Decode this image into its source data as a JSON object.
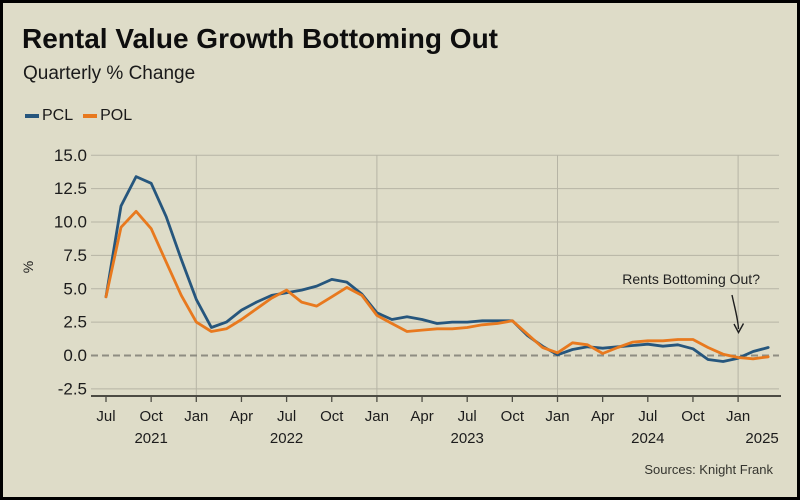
{
  "header": {
    "title": "Rental Value Growth Bottoming Out",
    "subtitle": "Quarterly % Change"
  },
  "legend": {
    "items": [
      {
        "label": "PCL",
        "color": "#26567d"
      },
      {
        "label": "POL",
        "color": "#e8791e"
      }
    ]
  },
  "footer": {
    "sources": "Sources: Knight Frank"
  },
  "colors": {
    "background": "#dedcc8",
    "pcl_line": "#26567d",
    "pol_line": "#e8791e",
    "gridline": "#b6b4a5",
    "zero_line": "#8e8d82",
    "axis": "#4c4b43",
    "text": "#1c1c1c",
    "annotation": "#1f1f1f"
  },
  "chart_data": {
    "type": "line",
    "title": "Rental Value Growth Bottoming Out",
    "subtitle": "Quarterly % Change",
    "ylabel": "%",
    "ylim": [
      -2.5,
      15.0
    ],
    "yticks": [
      15.0,
      12.5,
      10.0,
      7.5,
      5.0,
      2.5,
      0.0,
      -2.5
    ],
    "grid": "horizontal-light, vertical-at-january, dashed-zero-line",
    "legend_position": "top-left",
    "months": [
      "Jul 2021",
      "Aug 2021",
      "Sep 2021",
      "Oct 2021",
      "Nov 2021",
      "Dec 2021",
      "Jan 2022",
      "Feb 2022",
      "Mar 2022",
      "Apr 2022",
      "May 2022",
      "Jun 2022",
      "Jul 2022",
      "Aug 2022",
      "Sep 2022",
      "Oct 2022",
      "Nov 2022",
      "Dec 2022",
      "Jan 2023",
      "Feb 2023",
      "Mar 2023",
      "Apr 2023",
      "May 2023",
      "Jun 2023",
      "Jul 2023",
      "Aug 2023",
      "Sep 2023",
      "Oct 2023",
      "Nov 2023",
      "Dec 2023",
      "Jan 2024",
      "Feb 2024",
      "Mar 2024",
      "Apr 2024",
      "May 2024",
      "Jun 2024",
      "Jul 2024",
      "Aug 2024",
      "Sep 2024",
      "Oct 2024",
      "Nov 2024",
      "Dec 2024",
      "Jan 2025",
      "Feb 2025",
      "Mar 2025"
    ],
    "xtick_every_months": 3,
    "year_ticks": [
      {
        "index": 3,
        "label": "2021",
        "dx": 0
      },
      {
        "index": 12,
        "label": "2022",
        "dx": 0
      },
      {
        "index": 24,
        "label": "2023",
        "dx": 0
      },
      {
        "index": 36,
        "label": "2024",
        "dx": 0
      },
      {
        "index": 42,
        "label": "2025",
        "dx": 24
      }
    ],
    "series": [
      {
        "name": "PCL",
        "color": "#26567d",
        "values": [
          4.4,
          11.2,
          13.4,
          12.9,
          10.4,
          7.2,
          4.2,
          2.1,
          2.5,
          3.4,
          4.0,
          4.5,
          4.7,
          4.9,
          5.2,
          5.7,
          5.5,
          4.6,
          3.2,
          2.7,
          2.9,
          2.7,
          2.4,
          2.5,
          2.5,
          2.6,
          2.6,
          2.6,
          1.5,
          0.7,
          0.05,
          0.45,
          0.65,
          0.55,
          0.65,
          0.75,
          0.85,
          0.7,
          0.8,
          0.5,
          -0.3,
          -0.45,
          -0.2,
          0.3,
          0.6
        ]
      },
      {
        "name": "POL",
        "color": "#e8791e",
        "values": [
          4.4,
          9.6,
          10.8,
          9.5,
          7.0,
          4.5,
          2.5,
          1.8,
          2.0,
          2.7,
          3.5,
          4.3,
          4.9,
          4.0,
          3.7,
          4.4,
          5.1,
          4.5,
          3.0,
          2.4,
          1.8,
          1.9,
          2.0,
          2.0,
          2.1,
          2.3,
          2.4,
          2.6,
          1.6,
          0.6,
          0.2,
          0.95,
          0.8,
          0.15,
          0.6,
          1.0,
          1.1,
          1.1,
          1.2,
          1.2,
          0.6,
          0.1,
          -0.15,
          -0.25,
          -0.1
        ]
      }
    ],
    "zero_line_dashed": true,
    "annotation": {
      "text": "Rents Bottoming Out?",
      "points_to": "Jan 2025"
    }
  }
}
